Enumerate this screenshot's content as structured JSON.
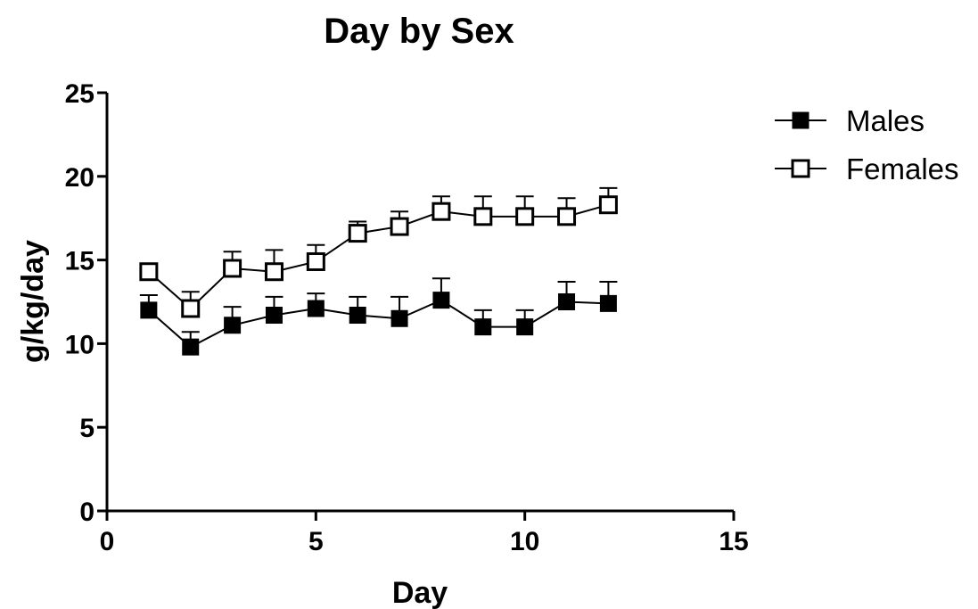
{
  "chart_data": {
    "type": "line",
    "title": "Day by Sex",
    "xlabel": "Day",
    "ylabel": "g/kg/day",
    "xlim": [
      0,
      15
    ],
    "ylim": [
      0,
      25
    ],
    "xticks": [
      0,
      5,
      10,
      15
    ],
    "yticks": [
      0,
      5,
      10,
      15,
      20,
      25
    ],
    "x_tick_labels": [
      "0",
      "5",
      "10",
      "15"
    ],
    "y_tick_labels": [
      "0",
      "5",
      "10",
      "15",
      "20",
      "25"
    ],
    "grid": false,
    "legend_position": "right",
    "series": [
      {
        "name": "Males",
        "marker": "filled-square",
        "color": "#000000",
        "x": [
          1,
          2,
          3,
          4,
          5,
          6,
          7,
          8,
          9,
          10,
          11,
          12
        ],
        "values": [
          12.0,
          9.8,
          11.1,
          11.7,
          12.1,
          11.7,
          11.5,
          12.6,
          11.0,
          11.0,
          12.5,
          12.4
        ],
        "error": [
          0.9,
          0.9,
          1.1,
          1.1,
          0.9,
          1.1,
          1.3,
          1.3,
          1.0,
          1.0,
          1.2,
          1.3
        ]
      },
      {
        "name": "Females",
        "marker": "open-square",
        "color": "#000000",
        "x": [
          1,
          2,
          3,
          4,
          5,
          6,
          7,
          8,
          9,
          10,
          11,
          12
        ],
        "values": [
          14.3,
          12.1,
          14.5,
          14.3,
          14.9,
          16.6,
          17.0,
          17.9,
          17.6,
          17.6,
          17.6,
          18.3
        ],
        "error": [
          0.3,
          1.0,
          1.0,
          1.3,
          1.0,
          0.7,
          0.9,
          0.9,
          1.2,
          1.2,
          1.1,
          1.0
        ]
      }
    ]
  }
}
